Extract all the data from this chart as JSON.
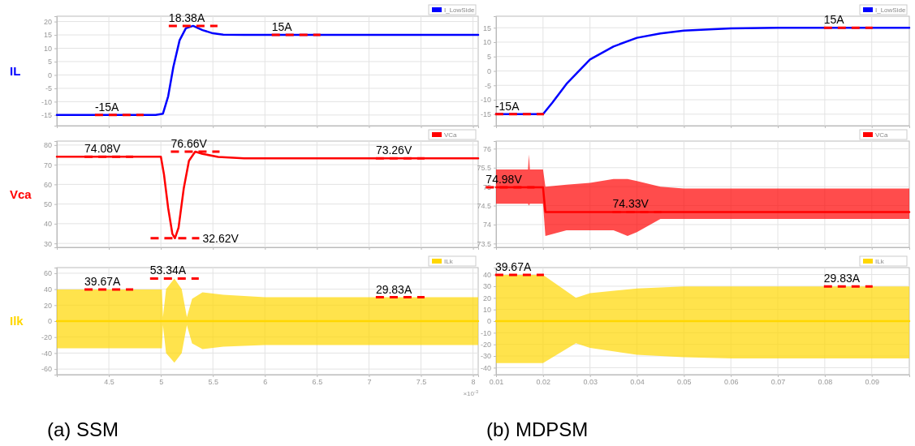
{
  "chart_data": [
    {
      "type": "line",
      "ylabel": "IL",
      "xlim": [
        4.0,
        8.05
      ],
      "xticks": [
        4.5,
        5,
        5.5,
        6,
        6.5,
        7,
        7.5,
        8
      ],
      "ylim": [
        -19,
        22
      ],
      "yticks": [
        -15,
        -10,
        -5,
        0,
        5,
        10,
        15,
        20
      ],
      "grid": true,
      "legend": "top right",
      "tick_labels": "y",
      "series": [
        {
          "name": "I_LowSide",
          "color": "#0000ff",
          "x": [
            4.0,
            4.95,
            5.02,
            5.07,
            5.12,
            5.18,
            5.24,
            5.31,
            5.4,
            5.5,
            5.6,
            5.8,
            8.05
          ],
          "values": [
            -15,
            -15,
            -14.5,
            -8,
            3,
            13,
            17.5,
            18.38,
            16.8,
            15.6,
            15.1,
            15,
            15
          ]
        }
      ],
      "annotations": [
        {
          "text": "18.38A",
          "x": 5.31,
          "y": 18.38
        },
        {
          "text": "15A",
          "x": 6.3,
          "y": 15
        },
        {
          "text": "-15A",
          "x": 4.6,
          "y": -15
        }
      ]
    },
    {
      "type": "line",
      "xlim": [
        0.01,
        0.098
      ],
      "xticks": [
        0.01,
        0.02,
        0.03,
        0.04,
        0.05,
        0.06,
        0.07,
        0.08,
        0.09
      ],
      "ylim": [
        -19,
        19
      ],
      "yticks": [
        -15,
        -10,
        -5,
        0,
        5,
        10,
        15
      ],
      "grid": true,
      "legend": "top right",
      "tick_labels": "y",
      "series": [
        {
          "name": "I_LowSide",
          "color": "#0000ff",
          "x": [
            0.01,
            0.02,
            0.022,
            0.025,
            0.03,
            0.035,
            0.04,
            0.045,
            0.05,
            0.06,
            0.07,
            0.098
          ],
          "values": [
            -15,
            -15,
            -11,
            -4.5,
            4,
            8.5,
            11.5,
            13,
            14,
            14.8,
            15,
            15
          ]
        }
      ],
      "annotations": [
        {
          "text": "15A",
          "x": 0.085,
          "y": 15
        },
        {
          "text": "-15A",
          "x": 0.015,
          "y": -15
        }
      ]
    },
    {
      "type": "line",
      "ylabel": "Vca",
      "xlim": [
        4.0,
        8.05
      ],
      "xticks": [
        4.5,
        5,
        5.5,
        6,
        6.5,
        7,
        7.5,
        8
      ],
      "ylim": [
        28,
        82
      ],
      "yticks": [
        30,
        40,
        50,
        60,
        70,
        80
      ],
      "grid": true,
      "legend": "top right",
      "tick_labels": "y",
      "series": [
        {
          "name": "VCa",
          "color": "#ff0000",
          "x": [
            4.0,
            5.0,
            5.03,
            5.07,
            5.11,
            5.135,
            5.17,
            5.22,
            5.27,
            5.33,
            5.4,
            5.55,
            5.8,
            8.05
          ],
          "values": [
            74.08,
            74.08,
            65,
            48,
            35,
            32.62,
            38,
            58,
            72,
            76.66,
            75.5,
            74,
            73.26,
            73.26
          ]
        }
      ],
      "annotations": [
        {
          "text": "74.08V",
          "x": 4.5,
          "y": 74.08
        },
        {
          "text": "76.66V",
          "x": 5.33,
          "y": 76.66
        },
        {
          "text": "32.62V",
          "x": 5.135,
          "y": 32.62
        },
        {
          "text": "73.26V",
          "x": 7.3,
          "y": 73.26
        }
      ]
    },
    {
      "type": "line",
      "xlim": [
        0.01,
        0.098
      ],
      "xticks": [
        0.01,
        0.02,
        0.03,
        0.04,
        0.05,
        0.06,
        0.07,
        0.08,
        0.09
      ],
      "ylim": [
        73.4,
        76.2
      ],
      "yticks": [
        73.5,
        74,
        74.5,
        75,
        75.5,
        76
      ],
      "grid": true,
      "legend": "top right",
      "tick_labels": "y",
      "series": [
        {
          "name": "VCa",
          "color": "#ff0000",
          "x": [
            0.01,
            0.0168,
            0.017,
            0.0172,
            0.02,
            0.0205,
            0.025,
            0.03,
            0.035,
            0.038,
            0.04,
            0.045,
            0.05,
            0.06,
            0.07,
            0.098
          ],
          "values": [
            74.98,
            74.98,
            74.98,
            74.98,
            74.98,
            74.33,
            74.33,
            74.33,
            74.33,
            74.33,
            74.33,
            74.33,
            74.33,
            74.33,
            74.33,
            74.33
          ],
          "upper": [
            75.45,
            75.45,
            75.85,
            75.45,
            75.45,
            75.0,
            75.05,
            75.1,
            75.2,
            75.2,
            75.15,
            75.0,
            74.95,
            74.95,
            74.95,
            74.95
          ],
          "lower": [
            74.55,
            74.55,
            74.5,
            74.55,
            74.55,
            73.7,
            73.85,
            73.85,
            73.85,
            73.7,
            73.8,
            74.15,
            74.15,
            74.15,
            74.15,
            74.15
          ]
        }
      ],
      "annotations": [
        {
          "text": "74.98V",
          "x": 0.013,
          "y": 74.98
        },
        {
          "text": "74.33V",
          "x": 0.04,
          "y": 74.33
        }
      ]
    },
    {
      "type": "line",
      "ylabel": "Ilk",
      "xlabel": "×10$^{-3}$",
      "xlim": [
        4.0,
        8.05
      ],
      "xticks": [
        4.5,
        5,
        5.5,
        6,
        6.5,
        7,
        7.5,
        8
      ],
      "ylim": [
        -67,
        67
      ],
      "yticks": [
        -60,
        -40,
        -20,
        0,
        20,
        40,
        60
      ],
      "grid": true,
      "legend": "top right",
      "series": [
        {
          "name": "ILk",
          "color": "#ffd700",
          "x": [
            4.0,
            5.01,
            5.02,
            5.05,
            5.13,
            5.2,
            5.25,
            5.3,
            5.4,
            5.6,
            6.0,
            8.05
          ],
          "values": [
            0,
            0,
            0,
            0,
            0,
            0,
            0,
            0,
            0,
            0,
            0,
            0
          ],
          "upper": [
            39.67,
            39.67,
            5,
            40,
            53.34,
            40,
            5,
            28,
            36,
            33,
            29.83,
            29.83
          ],
          "lower": [
            -34,
            -34,
            -5,
            -40,
            -52,
            -40,
            -5,
            -28,
            -35,
            -32,
            -30,
            -30
          ]
        }
      ],
      "annotations": [
        {
          "text": "39.67A",
          "x": 4.5,
          "y": 39.67
        },
        {
          "text": "53.34A",
          "x": 5.13,
          "y": 53.34
        },
        {
          "text": "29.83A",
          "x": 7.3,
          "y": 29.83
        },
        "(a) SSM"
      ]
    },
    {
      "type": "line",
      "xlim": [
        0.01,
        0.098
      ],
      "xticks": [
        0.01,
        0.02,
        0.03,
        0.04,
        0.05,
        0.06,
        0.07,
        0.08,
        0.09
      ],
      "ylim": [
        -46,
        46
      ],
      "yticks": [
        -40,
        -30,
        -20,
        -10,
        0,
        10,
        20,
        30,
        40
      ],
      "grid": true,
      "legend": "top right",
      "series": [
        {
          "name": "ILk",
          "color": "#ffd700",
          "x": [
            0.01,
            0.02,
            0.027,
            0.03,
            0.04,
            0.05,
            0.06,
            0.098
          ],
          "values": [
            0,
            0,
            0,
            0,
            0,
            0,
            0,
            0
          ],
          "upper": [
            39.67,
            39.67,
            20,
            24,
            28,
            29.83,
            29.83,
            29.83
          ],
          "lower": [
            -36,
            -36,
            -19,
            -23,
            -29,
            -31,
            -32,
            -32
          ]
        }
      ],
      "annotations": [
        {
          "text": "39.67A",
          "x": 0.015,
          "y": 39.67
        },
        {
          "text": "29.83A",
          "x": 0.085,
          "y": 29.83
        },
        "(b) MDPSM"
      ]
    }
  ]
}
